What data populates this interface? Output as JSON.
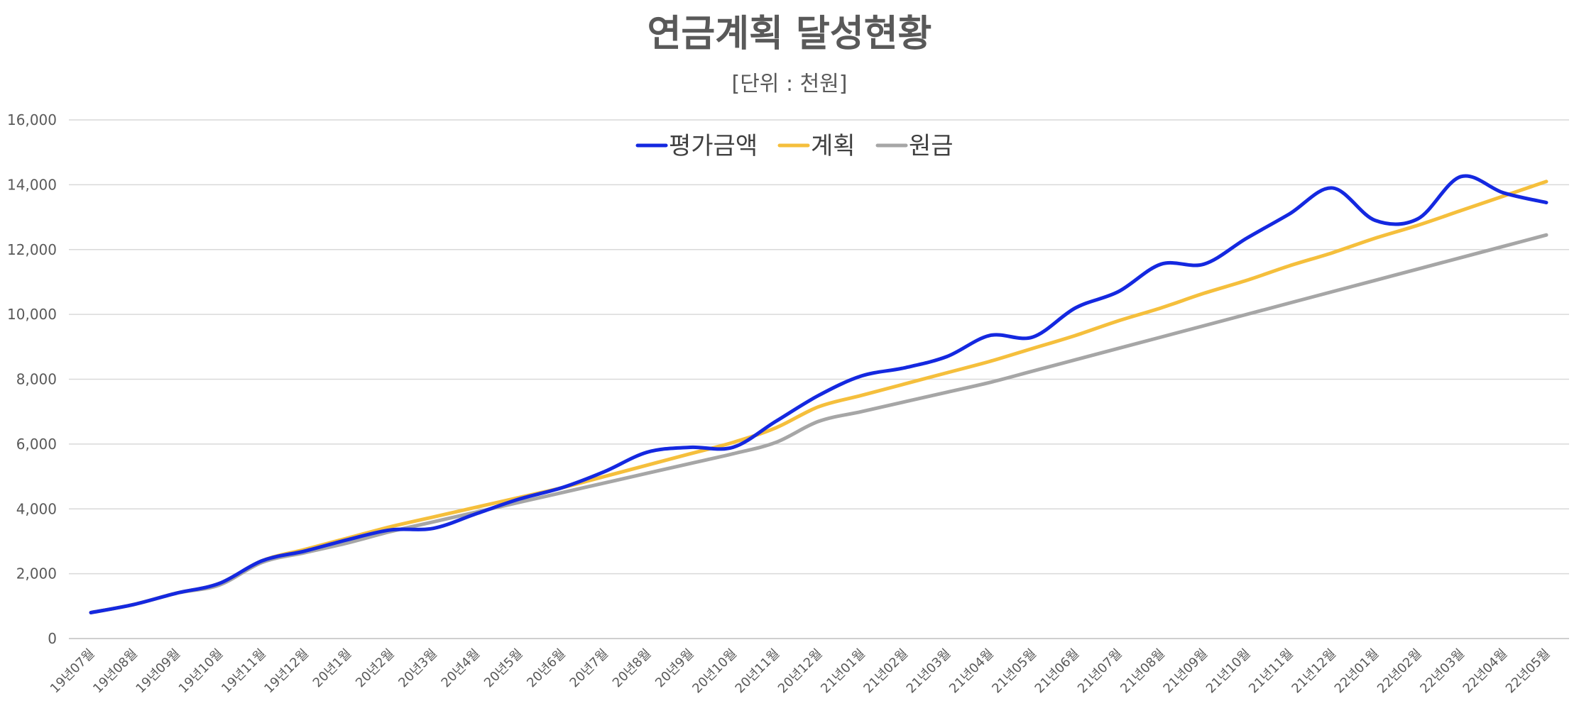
{
  "chart_data": {
    "type": "line",
    "title": "연금계획 달성현황",
    "subtitle": "[단위 : 천원]",
    "xlabel": "",
    "ylabel": "",
    "ylim": [
      0,
      16000
    ],
    "yticks": [
      0,
      2000,
      4000,
      6000,
      8000,
      10000,
      12000,
      14000,
      16000
    ],
    "ytick_labels": [
      "0",
      "2,000",
      "4,000",
      "6,000",
      "8,000",
      "10,000",
      "12,000",
      "14,000",
      "16,000"
    ],
    "legend_position": "top-center",
    "grid": true,
    "categories": [
      "19년07월",
      "19년08월",
      "19년09월",
      "19년10월",
      "19년11월",
      "19년12월",
      "20년1월",
      "20년2월",
      "20년3월",
      "20년4월",
      "20년5월",
      "20년6월",
      "20년7월",
      "20년8월",
      "20년9월",
      "20년10월",
      "20년11월",
      "20년12월",
      "21년01월",
      "21년02월",
      "21년03월",
      "21년04월",
      "21년05월",
      "21년06월",
      "21년07월",
      "21년08월",
      "21년09월",
      "21년10월",
      "21년11월",
      "21년12월",
      "22년01월",
      "22년02월",
      "22년03월",
      "22년04월",
      "22년05월"
    ],
    "series": [
      {
        "name": "평가금액",
        "color": "#1428E0",
        "values": [
          800,
          1050,
          1400,
          1700,
          2400,
          2700,
          3050,
          3350,
          3400,
          3850,
          4300,
          4650,
          5150,
          5750,
          5900,
          5900,
          6700,
          7500,
          8100,
          8350,
          8700,
          9350,
          9300,
          10200,
          10700,
          11550,
          11550,
          12350,
          13100,
          13900,
          12900,
          12950,
          14250,
          13750,
          13450
        ]
      },
      {
        "name": "계획",
        "color": "#F5BF3C",
        "values": [
          800,
          1050,
          1400,
          1700,
          2400,
          2750,
          3100,
          3450,
          3750,
          4050,
          4350,
          4650,
          5000,
          5350,
          5700,
          6050,
          6500,
          7150,
          7500,
          7850,
          8200,
          8550,
          8950,
          9350,
          9800,
          10200,
          10650,
          11050,
          11500,
          11900,
          12350,
          12750,
          13200,
          13650,
          14100
        ]
      },
      {
        "name": "원금",
        "color": "#A6A6A6",
        "values": [
          800,
          1050,
          1400,
          1650,
          2350,
          2650,
          2950,
          3300,
          3600,
          3900,
          4200,
          4500,
          4800,
          5100,
          5400,
          5700,
          6050,
          6700,
          7000,
          7300,
          7600,
          7900,
          8250,
          8600,
          8950,
          9300,
          9650,
          10000,
          10350,
          10700,
          11050,
          11400,
          11750,
          12100,
          12450
        ]
      }
    ]
  }
}
